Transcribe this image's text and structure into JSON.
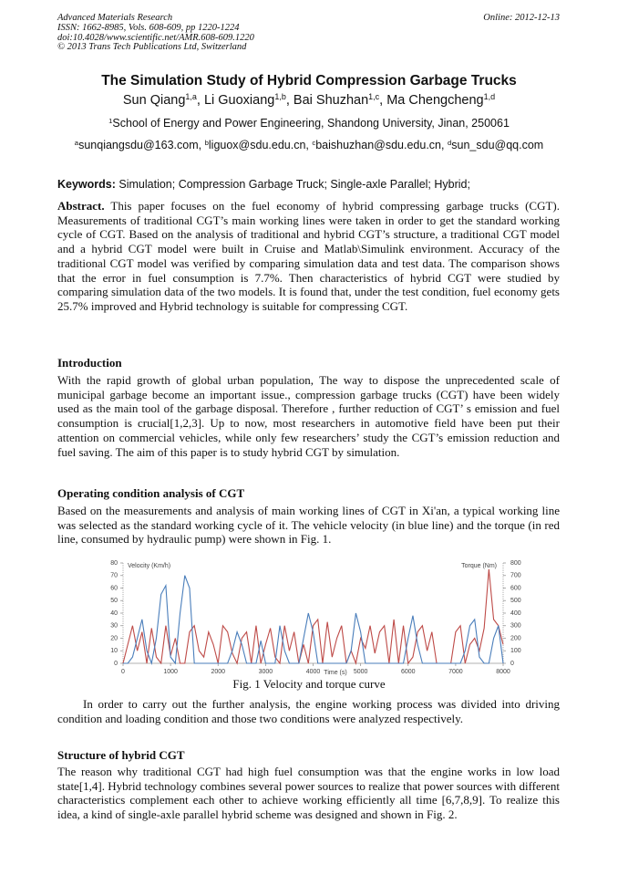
{
  "header": {
    "lines": [
      "Advanced Materials Research",
      "ISSN: 1662-8985, Vols. 608-609, pp 1220-1224",
      "doi:10.4028/www.scientific.net/AMR.608-609.1220",
      "© 2013 Trans Tech Publications Ltd, Switzerland"
    ],
    "online": "Online: 2012-12-13"
  },
  "title": "The Simulation Study of Hybrid Compression Garbage Trucks",
  "authors": [
    {
      "name": "Sun Qiang",
      "sup": "1,a"
    },
    {
      "name": ", Li Guoxiang",
      "sup": "1,b"
    },
    {
      "name": ", Bai Shuzhan",
      "sup": "1,c"
    },
    {
      "name": ", Ma Chengcheng",
      "sup": "1,d"
    }
  ],
  "affiliation": {
    "sup": "1",
    "text": "School of Energy and Power Engineering, Shandong University, Jinan, 250061"
  },
  "emails": [
    {
      "sup": "a",
      "text": "sunqiangsdu@163.com, "
    },
    {
      "sup": "b",
      "text": "liguox@sdu.edu.cn, "
    },
    {
      "sup": "c",
      "text": "baishuzhan@sdu.edu.cn, "
    },
    {
      "sup": "d",
      "text": "sun_sdu@qq.com"
    }
  ],
  "keywords": {
    "label": "Keywords:",
    "text": "Simulation; Compression Garbage Truck; Single-axle Parallel; Hybrid;"
  },
  "abstract": {
    "label": "Abstract.",
    "text": "This paper focuses on the fuel economy of hybrid compressing garbage trucks (CGT). Measurements of traditional CGT’s main working lines were taken in order to get the standard working cycle of CGT. Based on the analysis of traditional and hybrid CGT’s structure, a traditional CGT model and a hybrid CGT model were built in Cruise and Matlab\\Simulink environment. Accuracy of the traditional CGT model was verified by comparing simulation data and test data. The comparison shows that the error in fuel consumption is 7.7%. Then characteristics of hybrid CGT were studied by comparing simulation data of the two models. It is found that, under the test condition, fuel economy gets 25.7% improved and Hybrid technology is suitable for compressing CGT."
  },
  "sections": [
    {
      "heading": "Introduction",
      "paragraphs": [
        "With the rapid growth of global urban population, The way to dispose the unprecedented scale of municipal garbage become an important issue., compression garbage trucks (CGT) have been widely used as the main tool of the garbage disposal. Therefore , further reduction of  CGT’ s emission and fuel consumption is crucial[1,2,3]. Up to now, most researchers in automotive field have been put their attention on commercial vehicles, while only few researchers’ study the CGT’s emission reduction and fuel saving. The aim of this paper is to study hybrid CGT by simulation."
      ]
    },
    {
      "heading": "Operating condition analysis of CGT",
      "paragraphs": [
        "Based on the measurements and analysis of main working lines of CGT in Xi'an, a typical working line was selected as the standard working cycle of it. The vehicle velocity (in blue line) and the torque (in red line, consumed by hydraulic pump) were shown in Fig. 1.",
        "In order to carry out the further analysis, the engine working process was divided into driving condition and loading condition and those two conditions were analyzed respectively."
      ]
    },
    {
      "heading": "Structure of hybrid CGT",
      "paragraphs": [
        "The reason why traditional CGT had high fuel consumption was that the engine works in low load state[1,4]. Hybrid technology combines several power sources to realize that power sources with different characteristics complement each other to achieve working efficiently all time [6,7,8,9]. To realize this idea, a kind of single-axle parallel hybrid scheme was designed and shown in Fig. 2."
      ]
    }
  ],
  "figure_caption": "Fig. 1 Velocity and torque curve",
  "chart_data": {
    "type": "line",
    "xlabel": "Time (s)",
    "ylabel": "Velocity (Km/h)",
    "y2label": "Torque (Nm)",
    "x": [
      0,
      100,
      200,
      300,
      400,
      500,
      600,
      700,
      800,
      900,
      1000,
      1100,
      1200,
      1300,
      1400,
      1500,
      1600,
      1700,
      1800,
      1900,
      2000,
      2100,
      2200,
      2300,
      2400,
      2500,
      2600,
      2700,
      2800,
      2900,
      3000,
      3100,
      3200,
      3300,
      3400,
      3500,
      3600,
      3700,
      3800,
      3900,
      4000,
      4100,
      4200,
      4300,
      4400,
      4500,
      4600,
      4700,
      4800,
      4900,
      5000,
      5100,
      5200,
      5300,
      5400,
      5500,
      5600,
      5700,
      5800,
      5900,
      6000,
      6100,
      6200,
      6300,
      6400,
      6500,
      6600,
      6700,
      6800,
      6900,
      7000,
      7100,
      7200,
      7300,
      7400,
      7500,
      7600,
      7700,
      7800,
      7900,
      8000
    ],
    "series": [
      {
        "name": "Velocity",
        "color": "#4a7ebb",
        "values": [
          0,
          0,
          5,
          20,
          35,
          10,
          0,
          20,
          55,
          62,
          5,
          0,
          40,
          70,
          60,
          0,
          0,
          0,
          0,
          0,
          0,
          0,
          0,
          10,
          25,
          15,
          0,
          0,
          0,
          18,
          0,
          0,
          0,
          30,
          10,
          0,
          0,
          0,
          20,
          40,
          25,
          0,
          0,
          0,
          0,
          0,
          0,
          0,
          10,
          40,
          25,
          0,
          0,
          0,
          0,
          0,
          0,
          0,
          0,
          0,
          20,
          38,
          15,
          0,
          0,
          0,
          0,
          0,
          0,
          0,
          0,
          0,
          10,
          30,
          35,
          5,
          0,
          0,
          20,
          30,
          0
        ]
      },
      {
        "name": "Torque",
        "color": "#be4b48",
        "axis": "y2",
        "values": [
          0,
          150,
          300,
          100,
          250,
          0,
          280,
          50,
          0,
          300,
          60,
          200,
          0,
          0,
          250,
          300,
          100,
          50,
          250,
          150,
          0,
          300,
          250,
          80,
          0,
          200,
          250,
          0,
          300,
          0,
          150,
          280,
          50,
          0,
          300,
          100,
          250,
          0,
          150,
          0,
          300,
          350,
          0,
          330,
          50,
          200,
          300,
          0,
          100,
          0,
          200,
          120,
          300,
          80,
          250,
          300,
          0,
          350,
          0,
          300,
          0,
          50,
          250,
          300,
          100,
          250,
          0,
          0,
          0,
          0,
          250,
          300,
          0,
          150,
          200,
          100,
          280,
          750,
          350,
          300,
          150
        ]
      }
    ],
    "xlim": [
      0,
      8000
    ],
    "xticks": [
      0,
      1000,
      2000,
      3000,
      4000,
      5000,
      6000,
      7000,
      8000
    ],
    "ylim": [
      0,
      80
    ],
    "yticks": [
      0,
      10,
      20,
      30,
      40,
      50,
      60,
      70,
      80
    ],
    "y2lim": [
      0,
      800
    ],
    "y2ticks": [
      0,
      100,
      200,
      300,
      400,
      500,
      600,
      700,
      800
    ]
  }
}
